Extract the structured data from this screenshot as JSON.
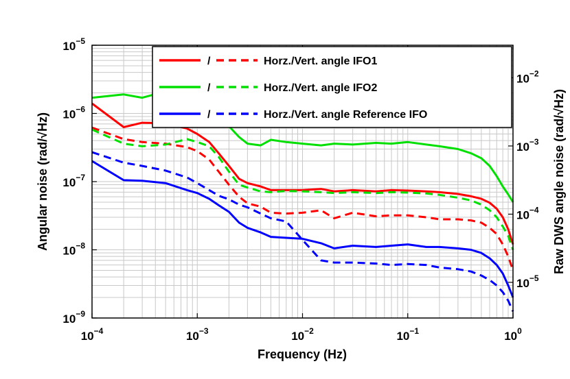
{
  "chart_data": {
    "type": "line",
    "xlabel": "Frequency (Hz)",
    "ylabel": "Angular noise (rad/√Hz)",
    "y2label": "Raw DWS angle noise (rad/√Hz)",
    "xscale": "log",
    "yscale": "log",
    "xlim": [
      0.0001,
      1
    ],
    "ylim": [
      1e-09,
      1e-05
    ],
    "y2lim": [
      3e-06,
      0.03
    ],
    "grid": true,
    "legend_position": "top-right",
    "x_ticks": [
      {
        "value": 0.0001,
        "base": "10",
        "exp": "−4"
      },
      {
        "value": 0.001,
        "base": "10",
        "exp": "−3"
      },
      {
        "value": 0.01,
        "base": "10",
        "exp": "−2"
      },
      {
        "value": 0.1,
        "base": "10",
        "exp": "−1"
      },
      {
        "value": 1,
        "base": "10",
        "exp": "0"
      }
    ],
    "y_ticks": [
      {
        "value": 1e-09,
        "base": "10",
        "exp": "−9"
      },
      {
        "value": 1e-08,
        "base": "10",
        "exp": "−8"
      },
      {
        "value": 1e-07,
        "base": "10",
        "exp": "−7"
      },
      {
        "value": 1e-06,
        "base": "10",
        "exp": "−6"
      },
      {
        "value": 1e-05,
        "base": "10",
        "exp": "−5"
      }
    ],
    "y2_ticks": [
      {
        "value": 1e-05,
        "base": "10",
        "exp": "−5"
      },
      {
        "value": 0.0001,
        "base": "10",
        "exp": "−4"
      },
      {
        "value": 0.001,
        "base": "10",
        "exp": "−3"
      },
      {
        "value": 0.01,
        "base": "10",
        "exp": "−2"
      }
    ],
    "legend": [
      {
        "separator": "/",
        "text": "Horz./Vert. angle IFO1",
        "color": "#ff0000"
      },
      {
        "separator": "/",
        "text": "Horz./Vert. angle IFO2",
        "color": "#00e000"
      },
      {
        "separator": "/",
        "text": "Horz./Vert. angle Reference IFO",
        "color": "#0000ff"
      }
    ],
    "series": [
      {
        "color": "#ff0000",
        "style": "solid",
        "x": [
          0.0001,
          0.0002,
          0.0003,
          0.0005,
          0.0008,
          0.001,
          0.0013,
          0.0016,
          0.002,
          0.0025,
          0.003,
          0.004,
          0.005,
          0.007,
          0.01,
          0.015,
          0.02,
          0.03,
          0.05,
          0.07,
          0.1,
          0.15,
          0.2,
          0.3,
          0.4,
          0.5,
          0.6,
          0.7,
          0.8,
          0.9,
          1
        ],
        "y": [
          1.4e-06,
          6.3e-07,
          7.3e-07,
          7.2e-07,
          6e-07,
          5e-07,
          3.8e-07,
          2.6e-07,
          1.7e-07,
          1.1e-07,
          9.5e-08,
          8.5e-08,
          7.5e-08,
          7.5e-08,
          7.5e-08,
          7.8e-08,
          7.2e-08,
          7.5e-08,
          7.2e-08,
          7.5e-08,
          7.4e-08,
          7.2e-08,
          7e-08,
          6.6e-08,
          6.1e-08,
          5.6e-08,
          4.9e-08,
          4e-08,
          3e-08,
          2e-08,
          1.2e-08
        ]
      },
      {
        "color": "#ff0000",
        "style": "dashed",
        "x": [
          0.0001,
          0.0002,
          0.0003,
          0.0005,
          0.0008,
          0.001,
          0.0013,
          0.0016,
          0.002,
          0.0025,
          0.003,
          0.004,
          0.005,
          0.007,
          0.01,
          0.015,
          0.02,
          0.03,
          0.05,
          0.07,
          0.1,
          0.15,
          0.2,
          0.3,
          0.4,
          0.5,
          0.6,
          0.7,
          0.8,
          0.9,
          1
        ],
        "y": [
          6.2e-07,
          4.2e-07,
          3.8e-07,
          3.6e-07,
          3.2e-07,
          2.8e-07,
          2.1e-07,
          1.4e-07,
          9e-08,
          6e-08,
          4.8e-08,
          4.3e-08,
          3.5e-08,
          3.4e-08,
          3.5e-08,
          3.8e-08,
          2.9e-08,
          3.5e-08,
          3.1e-08,
          3.2e-08,
          3.2e-08,
          3e-08,
          2.8e-08,
          2.8e-08,
          2.7e-08,
          2.5e-08,
          2.1e-08,
          1.7e-08,
          1.2e-08,
          8e-09,
          5e-09
        ]
      },
      {
        "color": "#00e000",
        "style": "solid",
        "x": [
          0.0001,
          0.0002,
          0.0003,
          0.0005,
          0.0008,
          0.001,
          0.0013,
          0.0016,
          0.002,
          0.0025,
          0.003,
          0.004,
          0.005,
          0.007,
          0.01,
          0.015,
          0.02,
          0.03,
          0.05,
          0.07,
          0.1,
          0.15,
          0.2,
          0.3,
          0.4,
          0.5,
          0.6,
          0.7,
          0.8,
          0.9,
          1
        ],
        "y": [
          1.7e-06,
          1.9e-06,
          1.7e-06,
          2.1e-06,
          2.3e-06,
          2.2e-06,
          1.7e-06,
          1.1e-06,
          6.5e-07,
          4.5e-07,
          3.6e-07,
          3.4e-07,
          4.1e-07,
          3.8e-07,
          3.6e-07,
          3.4e-07,
          3.6e-07,
          3.5e-07,
          3.7e-07,
          3.6e-07,
          3.8e-07,
          3.5e-07,
          3.3e-07,
          3e-07,
          2.6e-07,
          2.2e-07,
          1.7e-07,
          1.2e-07,
          8.5e-08,
          6.5e-08,
          5e-08
        ]
      },
      {
        "color": "#00e000",
        "style": "dashed",
        "x": [
          0.0001,
          0.0002,
          0.0003,
          0.0005,
          0.0008,
          0.001,
          0.0013,
          0.0016,
          0.002,
          0.0025,
          0.003,
          0.004,
          0.005,
          0.007,
          0.01,
          0.015,
          0.02,
          0.03,
          0.05,
          0.07,
          0.1,
          0.15,
          0.2,
          0.3,
          0.4,
          0.5,
          0.6,
          0.7,
          0.8,
          0.9,
          1
        ],
        "y": [
          5.8e-07,
          3.6e-07,
          3.3e-07,
          3.5e-07,
          4.2e-07,
          3.8e-07,
          3.3e-07,
          2.3e-07,
          1.4e-07,
          9e-08,
          8.2e-08,
          7.2e-08,
          7e-08,
          7.3e-08,
          7.2e-08,
          7e-08,
          6.8e-08,
          7e-08,
          6.8e-08,
          7e-08,
          6.9e-08,
          6.7e-08,
          6.4e-08,
          5.8e-08,
          5.3e-08,
          4.6e-08,
          3.8e-08,
          3e-08,
          2.2e-08,
          1.6e-08,
          1e-08
        ]
      },
      {
        "color": "#0000ff",
        "style": "solid",
        "x": [
          0.0001,
          0.0002,
          0.0003,
          0.0005,
          0.0008,
          0.001,
          0.0013,
          0.0016,
          0.002,
          0.0025,
          0.003,
          0.004,
          0.005,
          0.007,
          0.01,
          0.015,
          0.02,
          0.03,
          0.05,
          0.07,
          0.1,
          0.15,
          0.2,
          0.3,
          0.4,
          0.5,
          0.6,
          0.7,
          0.8,
          0.9,
          1
        ],
        "y": [
          2e-07,
          1.05e-07,
          1.03e-07,
          9.5e-08,
          7.5e-08,
          6.8e-08,
          5.6e-08,
          4.5e-08,
          3.6e-08,
          2.5e-08,
          2.1e-08,
          1.8e-08,
          1.55e-08,
          1.5e-08,
          1.45e-08,
          1.25e-08,
          1.05e-08,
          1.15e-08,
          1.1e-08,
          1.15e-08,
          1.2e-08,
          1.1e-08,
          1.1e-08,
          1.05e-08,
          1e-08,
          9e-09,
          7.5e-09,
          6e-09,
          4.5e-09,
          3e-09,
          2e-09
        ]
      },
      {
        "color": "#0000ff",
        "style": "dashed",
        "x": [
          0.0001,
          0.0002,
          0.0003,
          0.0005,
          0.0008,
          0.001,
          0.0013,
          0.0016,
          0.002,
          0.0025,
          0.003,
          0.004,
          0.005,
          0.007,
          0.01,
          0.015,
          0.02,
          0.03,
          0.05,
          0.07,
          0.1,
          0.15,
          0.2,
          0.3,
          0.4,
          0.5,
          0.6,
          0.7,
          0.8,
          0.9,
          1
        ],
        "y": [
          2.7e-07,
          1.9e-07,
          1.7e-07,
          1.45e-07,
          1.15e-07,
          9.5e-08,
          7.5e-08,
          6.2e-08,
          5.5e-08,
          4.6e-08,
          4.2e-08,
          3.4e-08,
          2.9e-08,
          2.6e-08,
          1.4e-08,
          7e-09,
          6.5e-09,
          6.5e-09,
          6.3e-09,
          6e-09,
          6.2e-09,
          6e-09,
          5.5e-09,
          5.2e-09,
          4.8e-09,
          4.2e-09,
          3.6e-09,
          3e-09,
          2.4e-09,
          1.8e-09,
          1.25e-09
        ]
      }
    ]
  }
}
